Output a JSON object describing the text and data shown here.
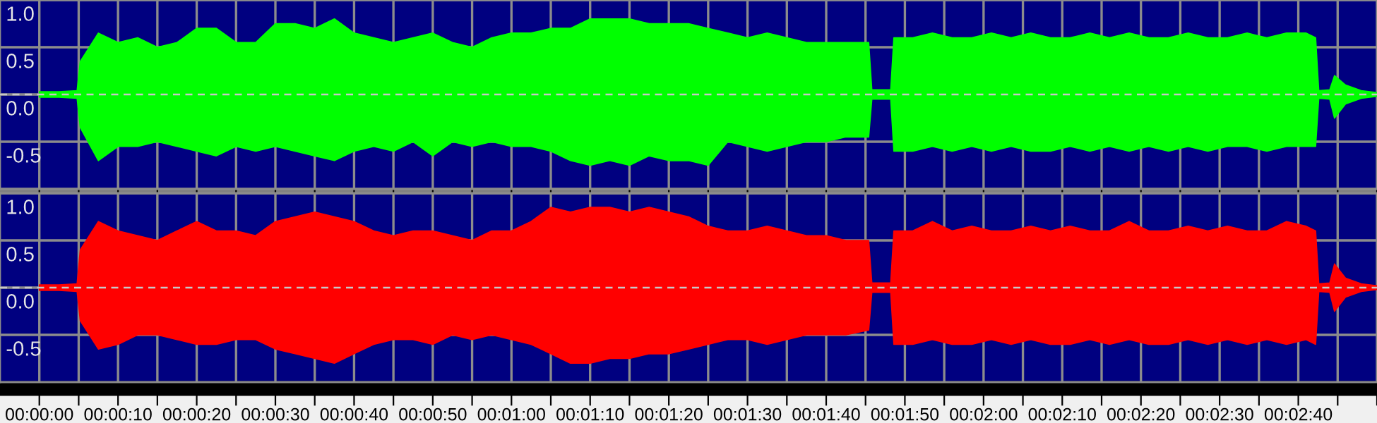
{
  "chart_data": [
    {
      "type": "area",
      "xlim": [
        -5,
        170
      ],
      "ylim": [
        -1,
        1
      ],
      "grid": true,
      "tick_labels": "y",
      "x": [
        0,
        2.5,
        4.8,
        5.2,
        7.5,
        10,
        12.5,
        15,
        17.5,
        20,
        22.5,
        25,
        27.5,
        30,
        32.5,
        35,
        37.5,
        40,
        42.5,
        45,
        47.5,
        50,
        52.5,
        55,
        57.5,
        60,
        62.5,
        65,
        67.5,
        70,
        72.5,
        75,
        77.5,
        80,
        82.5,
        85,
        87.5,
        90,
        92.5,
        95,
        97.5,
        100,
        102.5,
        105.4,
        105.8,
        108.2,
        108.6,
        111,
        113.5,
        116,
        118.5,
        121,
        123.5,
        126,
        128.5,
        131,
        133.5,
        136,
        138.5,
        141,
        143.5,
        146,
        148.5,
        151,
        153.5,
        156,
        158.5,
        161,
        162.2,
        162.6,
        164,
        164.6,
        166,
        168,
        170
      ],
      "xticks": [
        {
          "value": 0,
          "label": null
        },
        {
          "value": 5,
          "label": null
        },
        {
          "value": 10,
          "label": null
        },
        {
          "value": 15,
          "label": null
        },
        {
          "value": 20,
          "label": null
        },
        {
          "value": 25,
          "label": null
        },
        {
          "value": 30,
          "label": null
        },
        {
          "value": 35,
          "label": null
        },
        {
          "value": 40,
          "label": null
        },
        {
          "value": 45,
          "label": null
        },
        {
          "value": 50,
          "label": null
        },
        {
          "value": 55,
          "label": null
        },
        {
          "value": 60,
          "label": null
        },
        {
          "value": 65,
          "label": null
        },
        {
          "value": 70,
          "label": null
        },
        {
          "value": 75,
          "label": null
        },
        {
          "value": 80,
          "label": null
        },
        {
          "value": 85,
          "label": null
        },
        {
          "value": 90,
          "label": null
        },
        {
          "value": 95,
          "label": null
        },
        {
          "value": 100,
          "label": null
        },
        {
          "value": 105,
          "label": null
        },
        {
          "value": 110,
          "label": null
        },
        {
          "value": 115,
          "label": null
        },
        {
          "value": 120,
          "label": null
        },
        {
          "value": 125,
          "label": null
        },
        {
          "value": 130,
          "label": null
        },
        {
          "value": 135,
          "label": null
        },
        {
          "value": 140,
          "label": null
        },
        {
          "value": 145,
          "label": null
        },
        {
          "value": 150,
          "label": null
        },
        {
          "value": 155,
          "label": null
        },
        {
          "value": 160,
          "label": null
        },
        {
          "value": 165,
          "label": null
        },
        {
          "value": 170,
          "label": null
        }
      ],
      "yticks": [
        {
          "value": 1,
          "label": "1.0"
        },
        {
          "value": 0.5,
          "label": "0.5"
        },
        {
          "value": 0,
          "label": "0.0"
        },
        {
          "value": -0.5,
          "label": "-0.5"
        }
      ],
      "ref_lines": [
        {
          "axis": "y",
          "value": 0,
          "color": "#c8c8c8",
          "line_style": "dashed"
        }
      ],
      "series": [
        {
          "color": "#00ff00",
          "values": [
            0.03,
            0.03,
            0.04,
            0.35,
            0.65,
            0.55,
            0.6,
            0.5,
            0.55,
            0.7,
            0.7,
            0.55,
            0.55,
            0.75,
            0.75,
            0.7,
            0.8,
            0.65,
            0.6,
            0.55,
            0.6,
            0.65,
            0.55,
            0.5,
            0.6,
            0.65,
            0.65,
            0.7,
            0.7,
            0.8,
            0.8,
            0.8,
            0.75,
            0.75,
            0.75,
            0.7,
            0.65,
            0.6,
            0.65,
            0.6,
            0.55,
            0.55,
            0.55,
            0.55,
            0.05,
            0.05,
            0.6,
            0.6,
            0.65,
            0.6,
            0.6,
            0.65,
            0.6,
            0.65,
            0.6,
            0.6,
            0.65,
            0.6,
            0.65,
            0.6,
            0.6,
            0.65,
            0.6,
            0.6,
            0.65,
            0.6,
            0.65,
            0.65,
            0.6,
            0.04,
            0.05,
            0.2,
            0.1,
            0.04,
            0.02
          ]
        },
        {
          "color": "#00ff00",
          "values": [
            -0.03,
            -0.03,
            -0.04,
            -0.35,
            -0.7,
            -0.55,
            -0.55,
            -0.5,
            -0.55,
            -0.6,
            -0.65,
            -0.55,
            -0.6,
            -0.55,
            -0.6,
            -0.65,
            -0.7,
            -0.6,
            -0.55,
            -0.6,
            -0.5,
            -0.65,
            -0.5,
            -0.55,
            -0.5,
            -0.55,
            -0.55,
            -0.6,
            -0.7,
            -0.75,
            -0.7,
            -0.75,
            -0.65,
            -0.7,
            -0.7,
            -0.75,
            -0.5,
            -0.55,
            -0.6,
            -0.55,
            -0.5,
            -0.5,
            -0.45,
            -0.45,
            -0.05,
            -0.05,
            -0.6,
            -0.6,
            -0.55,
            -0.6,
            -0.55,
            -0.6,
            -0.55,
            -0.6,
            -0.6,
            -0.55,
            -0.6,
            -0.55,
            -0.6,
            -0.55,
            -0.6,
            -0.55,
            -0.6,
            -0.55,
            -0.55,
            -0.6,
            -0.55,
            -0.55,
            -0.55,
            -0.04,
            -0.05,
            -0.25,
            -0.1,
            -0.04,
            -0.02
          ]
        }
      ]
    },
    {
      "type": "area",
      "xlim": [
        -5,
        170
      ],
      "ylim": [
        -1,
        1
      ],
      "grid": true,
      "x": [
        0,
        2.5,
        4.8,
        5.2,
        7.5,
        10,
        12.5,
        15,
        17.5,
        20,
        22.5,
        25,
        27.5,
        30,
        32.5,
        35,
        37.5,
        40,
        42.5,
        45,
        47.5,
        50,
        52.5,
        55,
        57.5,
        60,
        62.5,
        65,
        67.5,
        70,
        72.5,
        75,
        77.5,
        80,
        82.5,
        85,
        87.5,
        90,
        92.5,
        95,
        97.5,
        100,
        102.5,
        105.4,
        105.8,
        108.2,
        108.6,
        111,
        113.5,
        116,
        118.5,
        121,
        123.5,
        126,
        128.5,
        131,
        133.5,
        136,
        138.5,
        141,
        143.5,
        146,
        148.5,
        151,
        153.5,
        156,
        158.5,
        161,
        162.2,
        162.6,
        164,
        164.6,
        166,
        168,
        170
      ],
      "xticks": [
        {
          "value": 0,
          "label": "00:00:00"
        },
        {
          "value": 5,
          "label": null
        },
        {
          "value": 10,
          "label": "00:00:10"
        },
        {
          "value": 15,
          "label": null
        },
        {
          "value": 20,
          "label": "00:00:20"
        },
        {
          "value": 25,
          "label": null
        },
        {
          "value": 30,
          "label": "00:00:30"
        },
        {
          "value": 35,
          "label": null
        },
        {
          "value": 40,
          "label": "00:00:40"
        },
        {
          "value": 45,
          "label": null
        },
        {
          "value": 50,
          "label": "00:00:50"
        },
        {
          "value": 55,
          "label": null
        },
        {
          "value": 60,
          "label": "00:01:00"
        },
        {
          "value": 65,
          "label": null
        },
        {
          "value": 70,
          "label": "00:01:10"
        },
        {
          "value": 75,
          "label": null
        },
        {
          "value": 80,
          "label": "00:01:20"
        },
        {
          "value": 85,
          "label": null
        },
        {
          "value": 90,
          "label": "00:01:30"
        },
        {
          "value": 95,
          "label": null
        },
        {
          "value": 100,
          "label": "00:01:40"
        },
        {
          "value": 105,
          "label": null
        },
        {
          "value": 110,
          "label": "00:01:50"
        },
        {
          "value": 115,
          "label": null
        },
        {
          "value": 120,
          "label": "00:02:00"
        },
        {
          "value": 125,
          "label": null
        },
        {
          "value": 130,
          "label": "00:02:10"
        },
        {
          "value": 135,
          "label": null
        },
        {
          "value": 140,
          "label": "00:02:20"
        },
        {
          "value": 145,
          "label": null
        },
        {
          "value": 150,
          "label": "00:02:30"
        },
        {
          "value": 155,
          "label": null
        },
        {
          "value": 160,
          "label": "00:02:40"
        },
        {
          "value": 165,
          "label": null
        },
        {
          "value": 170,
          "label": null
        }
      ],
      "yticks": [
        {
          "value": 1,
          "label": "1.0"
        },
        {
          "value": 0.5,
          "label": "0.5"
        },
        {
          "value": 0,
          "label": "0.0"
        },
        {
          "value": -0.5,
          "label": "-0.5"
        }
      ],
      "ref_lines": [
        {
          "axis": "y",
          "value": 0,
          "color": "#c8c8c8",
          "line_style": "dashed"
        }
      ],
      "series": [
        {
          "color": "#ff0000",
          "values": [
            0.03,
            0.03,
            0.04,
            0.4,
            0.7,
            0.6,
            0.55,
            0.5,
            0.6,
            0.7,
            0.6,
            0.6,
            0.55,
            0.7,
            0.75,
            0.8,
            0.75,
            0.7,
            0.6,
            0.55,
            0.6,
            0.6,
            0.55,
            0.5,
            0.6,
            0.6,
            0.7,
            0.85,
            0.8,
            0.85,
            0.85,
            0.8,
            0.85,
            0.8,
            0.75,
            0.65,
            0.6,
            0.6,
            0.65,
            0.6,
            0.55,
            0.55,
            0.5,
            0.5,
            0.05,
            0.05,
            0.6,
            0.6,
            0.7,
            0.6,
            0.65,
            0.6,
            0.6,
            0.65,
            0.6,
            0.65,
            0.6,
            0.6,
            0.7,
            0.6,
            0.6,
            0.65,
            0.6,
            0.65,
            0.6,
            0.6,
            0.7,
            0.65,
            0.6,
            0.04,
            0.05,
            0.25,
            0.1,
            0.04,
            0.02
          ]
        },
        {
          "color": "#ff0000",
          "values": [
            -0.03,
            -0.03,
            -0.04,
            -0.35,
            -0.65,
            -0.6,
            -0.5,
            -0.5,
            -0.55,
            -0.6,
            -0.6,
            -0.55,
            -0.55,
            -0.65,
            -0.7,
            -0.75,
            -0.8,
            -0.7,
            -0.6,
            -0.55,
            -0.55,
            -0.6,
            -0.5,
            -0.55,
            -0.5,
            -0.55,
            -0.6,
            -0.7,
            -0.8,
            -0.8,
            -0.75,
            -0.75,
            -0.7,
            -0.7,
            -0.65,
            -0.6,
            -0.55,
            -0.55,
            -0.6,
            -0.55,
            -0.5,
            -0.5,
            -0.5,
            -0.45,
            -0.05,
            -0.05,
            -0.6,
            -0.6,
            -0.55,
            -0.6,
            -0.6,
            -0.55,
            -0.6,
            -0.55,
            -0.6,
            -0.6,
            -0.55,
            -0.6,
            -0.55,
            -0.6,
            -0.6,
            -0.55,
            -0.6,
            -0.55,
            -0.6,
            -0.55,
            -0.6,
            -0.55,
            -0.6,
            -0.04,
            -0.05,
            -0.25,
            -0.1,
            -0.04,
            -0.02
          ]
        }
      ]
    }
  ]
}
